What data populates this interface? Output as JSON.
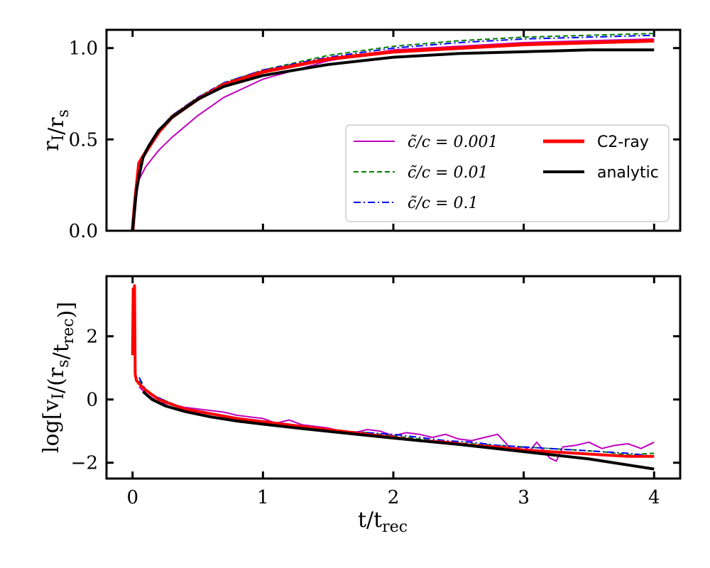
{
  "chart_data": [
    {
      "type": "line",
      "panel": "top",
      "ylabel": "r_I/r_s",
      "xlabel": "",
      "xlim": [
        -0.2,
        4.2
      ],
      "ylim": [
        0.0,
        1.1
      ],
      "xticks": [
        0,
        1,
        2,
        3,
        4
      ],
      "yticks": [
        0.0,
        0.5,
        1.0
      ],
      "ytick_labels": [
        "0.0",
        "0.5",
        "1.0"
      ],
      "legend_position": "lower-right",
      "grid": false,
      "series": [
        {
          "name": "c̃/c = 0.001",
          "color": "#bf00bf",
          "style": "solid",
          "width": 2,
          "x": [
            0.0,
            0.02,
            0.05,
            0.1,
            0.2,
            0.3,
            0.5,
            0.7,
            1.0,
            1.5,
            2.0,
            2.5,
            3.0,
            3.5,
            4.0
          ],
          "y": [
            0.0,
            0.15,
            0.28,
            0.35,
            0.44,
            0.51,
            0.63,
            0.73,
            0.83,
            0.93,
            0.99,
            1.01,
            1.03,
            1.04,
            1.05
          ]
        },
        {
          "name": "c̃/c = 0.01",
          "color": "#008000",
          "style": "dashed",
          "width": 2,
          "x": [
            0.0,
            0.02,
            0.05,
            0.1,
            0.2,
            0.3,
            0.5,
            0.7,
            1.0,
            1.5,
            2.0,
            2.5,
            3.0,
            3.5,
            4.0
          ],
          "y": [
            0.0,
            0.18,
            0.36,
            0.44,
            0.55,
            0.63,
            0.73,
            0.81,
            0.88,
            0.96,
            1.01,
            1.04,
            1.06,
            1.07,
            1.08
          ]
        },
        {
          "name": "c̃/c = 0.1",
          "color": "#0000ff",
          "style": "dashdot",
          "width": 2,
          "x": [
            0.0,
            0.02,
            0.05,
            0.1,
            0.2,
            0.3,
            0.5,
            0.7,
            1.0,
            1.5,
            2.0,
            2.5,
            3.0,
            3.5,
            4.0
          ],
          "y": [
            0.0,
            0.18,
            0.36,
            0.44,
            0.55,
            0.63,
            0.73,
            0.81,
            0.88,
            0.95,
            1.0,
            1.03,
            1.05,
            1.06,
            1.07
          ]
        },
        {
          "name": "C2-ray",
          "color": "#ff0000",
          "style": "solid",
          "width": 5,
          "x": [
            0.0,
            0.02,
            0.05,
            0.1,
            0.2,
            0.3,
            0.5,
            0.7,
            1.0,
            1.5,
            2.0,
            2.5,
            3.0,
            3.5,
            4.0
          ],
          "y": [
            0.0,
            0.17,
            0.37,
            0.43,
            0.54,
            0.62,
            0.72,
            0.8,
            0.87,
            0.94,
            0.98,
            1.0,
            1.02,
            1.03,
            1.04
          ]
        },
        {
          "name": "analytic",
          "color": "#000000",
          "style": "solid",
          "width": 4,
          "x": [
            0.0,
            0.01,
            0.03,
            0.05,
            0.08,
            0.12,
            0.2,
            0.3,
            0.5,
            0.7,
            1.0,
            1.5,
            2.0,
            2.5,
            3.0,
            3.5,
            4.0
          ],
          "y": [
            0.0,
            0.08,
            0.22,
            0.3,
            0.4,
            0.46,
            0.55,
            0.62,
            0.72,
            0.79,
            0.85,
            0.91,
            0.95,
            0.97,
            0.98,
            0.99,
            0.99
          ]
        }
      ]
    },
    {
      "type": "line",
      "panel": "bottom",
      "xlabel": "t/t_rec",
      "ylabel": "log[v_I/(r_s/t_rec)]",
      "xlim": [
        -0.2,
        4.2
      ],
      "ylim": [
        -2.5,
        3.9
      ],
      "xticks": [
        0,
        1,
        2,
        3,
        4
      ],
      "xtick_labels": [
        "0",
        "1",
        "2",
        "3",
        "4"
      ],
      "yticks": [
        -2,
        0,
        2
      ],
      "ytick_labels": [
        "−2",
        "0",
        "2"
      ],
      "grid": false,
      "series": [
        {
          "name": "c̃/c = 0.001",
          "color": "#bf00bf",
          "style": "solid",
          "width": 2,
          "x": [
            0.05,
            0.1,
            0.2,
            0.3,
            0.4,
            0.5,
            0.6,
            0.7,
            0.8,
            0.9,
            1.0,
            1.1,
            1.2,
            1.3,
            1.4,
            1.5,
            1.6,
            1.7,
            1.8,
            1.9,
            2.0,
            2.1,
            2.2,
            2.3,
            2.4,
            2.5,
            2.6,
            2.7,
            2.8,
            2.9,
            3.0,
            3.05,
            3.1,
            3.2,
            3.25,
            3.3,
            3.4,
            3.5,
            3.6,
            3.7,
            3.8,
            3.9,
            4.0
          ],
          "y": [
            0.4,
            0.2,
            -0.1,
            -0.15,
            -0.25,
            -0.3,
            -0.35,
            -0.4,
            -0.5,
            -0.55,
            -0.6,
            -0.75,
            -0.65,
            -0.8,
            -0.85,
            -0.9,
            -1.0,
            -1.05,
            -0.95,
            -1.0,
            -1.15,
            -1.05,
            -1.1,
            -1.2,
            -1.1,
            -1.25,
            -1.3,
            -1.2,
            -1.1,
            -1.55,
            -1.5,
            -1.6,
            -1.35,
            -1.85,
            -1.95,
            -1.5,
            -1.45,
            -1.35,
            -1.55,
            -1.45,
            -1.4,
            -1.55,
            -1.35
          ]
        },
        {
          "name": "c̃/c = 0.01",
          "color": "#008000",
          "style": "dashed",
          "width": 2,
          "x": [
            0.05,
            0.1,
            0.2,
            0.4,
            0.6,
            0.8,
            1.0,
            1.2,
            1.4,
            1.6,
            1.8,
            2.0,
            2.2,
            2.4,
            2.6,
            2.8,
            3.0,
            3.2,
            3.4,
            3.6,
            3.8,
            4.0
          ],
          "y": [
            0.6,
            0.25,
            0.05,
            -0.3,
            -0.45,
            -0.6,
            -0.7,
            -0.8,
            -0.9,
            -1.0,
            -1.05,
            -1.15,
            -1.25,
            -1.35,
            -1.4,
            -1.45,
            -1.5,
            -1.55,
            -1.6,
            -1.65,
            -1.75,
            -1.7
          ]
        },
        {
          "name": "c̃/c = 0.1",
          "color": "#0000ff",
          "style": "dashdot",
          "width": 2,
          "x": [
            0.05,
            0.1,
            0.2,
            0.4,
            0.6,
            0.8,
            1.0,
            1.2,
            1.4,
            1.6,
            1.8,
            2.0,
            2.2,
            2.4,
            2.6,
            2.8,
            3.0,
            3.2,
            3.4,
            3.6,
            3.8,
            4.0
          ],
          "y": [
            0.7,
            0.3,
            0.05,
            -0.3,
            -0.45,
            -0.6,
            -0.7,
            -0.8,
            -0.9,
            -1.0,
            -1.05,
            -1.1,
            -1.2,
            -1.3,
            -1.35,
            -1.45,
            -1.5,
            -1.55,
            -1.6,
            -1.65,
            -1.7,
            -1.8
          ]
        },
        {
          "name": "C2-ray",
          "color": "#ff0000",
          "style": "solid",
          "width": 4,
          "x": [
            0.0,
            0.005,
            0.01,
            0.015,
            0.02,
            0.03,
            0.05,
            0.1,
            0.2,
            0.4,
            0.6,
            0.8,
            1.0,
            1.2,
            1.4,
            1.6,
            1.8,
            2.0,
            2.2,
            2.4,
            2.6,
            2.8,
            3.0,
            3.2,
            3.4,
            3.6,
            3.8,
            4.0
          ],
          "y": [
            1.4,
            3.5,
            1.7,
            3.6,
            0.8,
            0.6,
            0.5,
            0.3,
            0.0,
            -0.3,
            -0.45,
            -0.6,
            -0.7,
            -0.8,
            -0.9,
            -1.0,
            -1.1,
            -1.2,
            -1.3,
            -1.35,
            -1.45,
            -1.5,
            -1.6,
            -1.65,
            -1.7,
            -1.75,
            -1.8,
            -1.8
          ]
        },
        {
          "name": "analytic",
          "color": "#000000",
          "style": "solid",
          "width": 4,
          "x": [
            0.08,
            0.15,
            0.25,
            0.4,
            0.6,
            0.8,
            1.0,
            1.3,
            1.6,
            2.0,
            2.5,
            3.0,
            3.5,
            4.0
          ],
          "y": [
            0.25,
            0.0,
            -0.2,
            -0.38,
            -0.55,
            -0.68,
            -0.78,
            -0.92,
            -1.05,
            -1.22,
            -1.42,
            -1.65,
            -1.88,
            -2.2
          ]
        }
      ]
    }
  ]
}
